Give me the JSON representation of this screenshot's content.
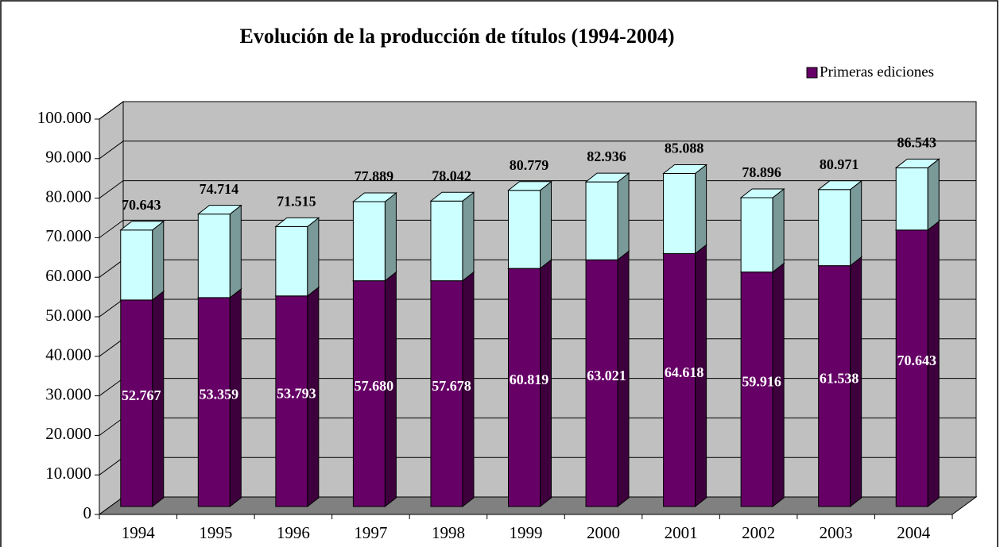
{
  "chart_data": {
    "type": "bar3d_stacked",
    "title": "Evolución de la producción de títulos (1994-2004)",
    "categories": [
      "1994",
      "1995",
      "1996",
      "1997",
      "1998",
      "1999",
      "2000",
      "2001",
      "2002",
      "2003",
      "2004"
    ],
    "series": [
      {
        "name": "Primeras ediciones",
        "color": "#660066",
        "values": [
          52767,
          53359,
          53793,
          57680,
          57678,
          60819,
          63021,
          64618,
          59916,
          61538,
          70643
        ],
        "value_labels": [
          "52.767",
          "53.359",
          "53.793",
          "57.680",
          "57.678",
          "60.819",
          "63.021",
          "64.618",
          "59.916",
          "61.538",
          "70.643"
        ]
      }
    ],
    "totals": [
      70643,
      74714,
      71515,
      77889,
      78042,
      80779,
      82936,
      85088,
      78896,
      80971,
      86543
    ],
    "total_labels": [
      "70.643",
      "74.714",
      "71.515",
      "77.889",
      "78.042",
      "80.779",
      "82.936",
      "85.088",
      "78.896",
      "80.971",
      "86.543"
    ],
    "total_color": "#ccffff",
    "ylim": [
      0,
      100000
    ],
    "yticks": [
      0,
      {
        "value": 10000,
        "label": "10.000"
      },
      {
        "value": 20000,
        "label": "20.000"
      },
      {
        "value": 30000,
        "label": "30.000"
      },
      {
        "value": 40000,
        "label": "40.000"
      },
      {
        "value": 50000,
        "label": "50.000"
      },
      {
        "value": 60000,
        "label": "60.000"
      },
      {
        "value": 70000,
        "label": "70.000"
      },
      {
        "value": 80000,
        "label": "80.000"
      },
      {
        "value": 90000,
        "label": "90.000"
      },
      {
        "value": 100000,
        "label": "100.000"
      }
    ],
    "grid": true
  }
}
